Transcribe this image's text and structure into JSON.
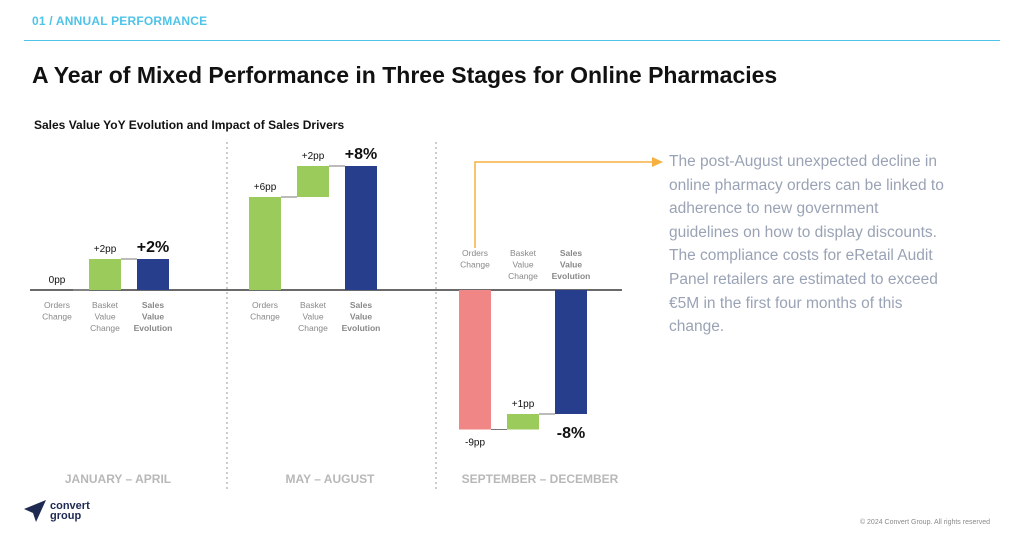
{
  "header": {
    "section_tag": "01 / ANNUAL PERFORMANCE",
    "title": "A Year of Mixed Performance in Three Stages for Online Pharmacies"
  },
  "chart_title": "Sales Value YoY Evolution and Impact of Sales Drivers",
  "note": "The post-August unexpected decline in online pharmacy orders can be linked to adherence to new government guidelines on how to display discounts. The compliance costs for eRetail Audit Panel retailers are estimated to exceed €5M in the first four months of this change.",
  "footer": {
    "logo_line1": "convert",
    "logo_line2": "group",
    "copyright": "© 2024 Convert Group. All rights reserved"
  },
  "colors": {
    "accent": "#4FC3E8",
    "positive": "#9BCB5B",
    "negative": "#F08686",
    "total": "#273E8C",
    "arrow": "#F5B041"
  },
  "chart_data": {
    "type": "waterfall",
    "unit": "pp",
    "driver_labels": [
      "Orders Change",
      "Basket Value Change",
      "Sales Value Evolution"
    ],
    "panels": [
      {
        "period": "JANUARY – APRIL",
        "orders_change": 0,
        "basket_value_change": 2,
        "sales_value_evolution": 2,
        "labels": [
          "0pp",
          "+2pp",
          "+2%"
        ]
      },
      {
        "period": "MAY – AUGUST",
        "orders_change": 6,
        "basket_value_change": 2,
        "sales_value_evolution": 8,
        "labels": [
          "+6pp",
          "+2pp",
          "+8%"
        ]
      },
      {
        "period": "SEPTEMBER – DECEMBER",
        "orders_change": -9,
        "basket_value_change": 1,
        "sales_value_evolution": -8,
        "labels": [
          "-9pp",
          "+1pp",
          "-8%"
        ]
      }
    ]
  }
}
